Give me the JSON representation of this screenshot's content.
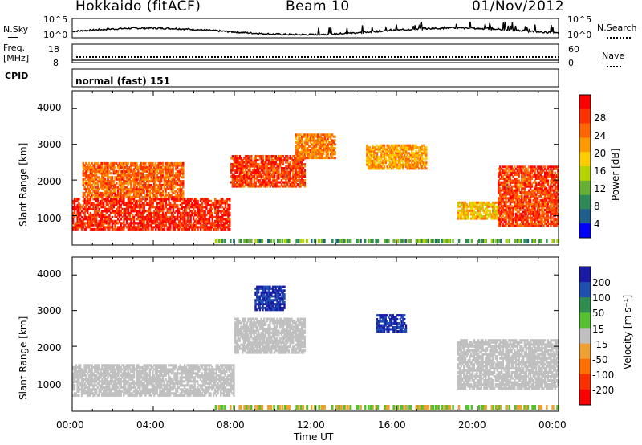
{
  "header": {
    "site": "Hokkaido (fitACF)",
    "beam": "Beam 10",
    "date": "01/Nov/2012"
  },
  "top_panels": {
    "nsky_label": "N.Sky",
    "nsky_ticks": [
      "10^5",
      "10^0"
    ],
    "nsearch_label": "N.Search",
    "nsearch_ticks": [
      "10^5",
      "10^0"
    ],
    "freq_label": "Freq.",
    "freq_unit": "[MHz]",
    "freq_ticks": [
      "18",
      "8"
    ],
    "nave_label": "Nave",
    "nave_ticks": [
      "60",
      "0"
    ],
    "cpid_label": "CPID",
    "cpid_value": "normal (fast) 151"
  },
  "power_panel": {
    "ylabel": "Slant Range [km]",
    "yticks": [
      "4000",
      "3000",
      "2000",
      "1000"
    ],
    "colorbar_label": "Power [dB]",
    "colorbar_ticks": [
      "28",
      "24",
      "20",
      "16",
      "12",
      "8",
      "4"
    ],
    "colorbar_colors": [
      "#ff0000",
      "#ff3300",
      "#ff6600",
      "#ff9900",
      "#ffcc00",
      "#b8d400",
      "#66b033",
      "#2e8b57",
      "#1f5f8b",
      "#0000ff"
    ]
  },
  "velocity_panel": {
    "ylabel": "Slant Range [km]",
    "yticks": [
      "4000",
      "3000",
      "2000",
      "1000"
    ],
    "colorbar_label": "Velocity [m s⁻¹]",
    "colorbar_ticks": [
      "200",
      "100",
      "50",
      "15",
      "-15",
      "-50",
      "-100",
      "-200"
    ],
    "colorbar_colors": [
      "#1a1aa8",
      "#1f4fb0",
      "#2f8f4f",
      "#55c030",
      "#c0c0c0",
      "#f0a030",
      "#ff7000",
      "#ff3000",
      "#ff0000"
    ]
  },
  "xaxis": {
    "label": "Time UT",
    "ticks": [
      "00:00",
      "04:00",
      "08:00",
      "12:00",
      "16:00",
      "20:00",
      "00:00"
    ]
  },
  "chart_data": [
    {
      "type": "heatmap",
      "title": "Power",
      "xlabel": "Time UT",
      "ylabel": "Slant Range [km]",
      "xlim": [
        "00:00",
        "24:00"
      ],
      "ylim": [
        180,
        4500
      ],
      "colorbar": {
        "label": "Power [dB]",
        "range": [
          0,
          30
        ]
      },
      "regions": [
        {
          "t_start": 0.0,
          "t_end": 7.8,
          "range_lo": 600,
          "range_hi": 1500,
          "power_db": 28
        },
        {
          "t_start": 0.5,
          "t_end": 5.5,
          "range_lo": 1500,
          "range_hi": 2500,
          "power_db": 24
        },
        {
          "t_start": 7.8,
          "t_end": 11.5,
          "range_lo": 1800,
          "range_hi": 2700,
          "power_db": 26
        },
        {
          "t_start": 11.0,
          "t_end": 13.0,
          "range_lo": 2600,
          "range_hi": 3300,
          "power_db": 22
        },
        {
          "t_start": 14.5,
          "t_end": 17.5,
          "range_lo": 2300,
          "range_hi": 3000,
          "power_db": 20
        },
        {
          "t_start": 19.0,
          "t_end": 21.0,
          "range_lo": 900,
          "range_hi": 1400,
          "power_db": 18
        },
        {
          "t_start": 21.0,
          "t_end": 24.0,
          "range_lo": 700,
          "range_hi": 2400,
          "power_db": 26
        }
      ]
    },
    {
      "type": "heatmap",
      "title": "Velocity",
      "xlabel": "Time UT",
      "ylabel": "Slant Range [km]",
      "xlim": [
        "00:00",
        "24:00"
      ],
      "ylim": [
        180,
        4500
      ],
      "colorbar": {
        "label": "Velocity [m s-1]",
        "range": [
          -200,
          200
        ]
      },
      "regions": [
        {
          "t_start": 0.0,
          "t_end": 8.0,
          "range_lo": 600,
          "range_hi": 1500,
          "velocity": 0
        },
        {
          "t_start": 8.0,
          "t_end": 11.5,
          "range_lo": 1800,
          "range_hi": 2800,
          "velocity": 0
        },
        {
          "t_start": 9.0,
          "t_end": 10.5,
          "range_lo": 3000,
          "range_hi": 3700,
          "velocity": 200
        },
        {
          "t_start": 15.0,
          "t_end": 16.5,
          "range_lo": 2400,
          "range_hi": 2900,
          "velocity": 200
        },
        {
          "t_start": 19.0,
          "t_end": 24.0,
          "range_lo": 800,
          "range_hi": 2200,
          "velocity": 0
        }
      ]
    }
  ]
}
